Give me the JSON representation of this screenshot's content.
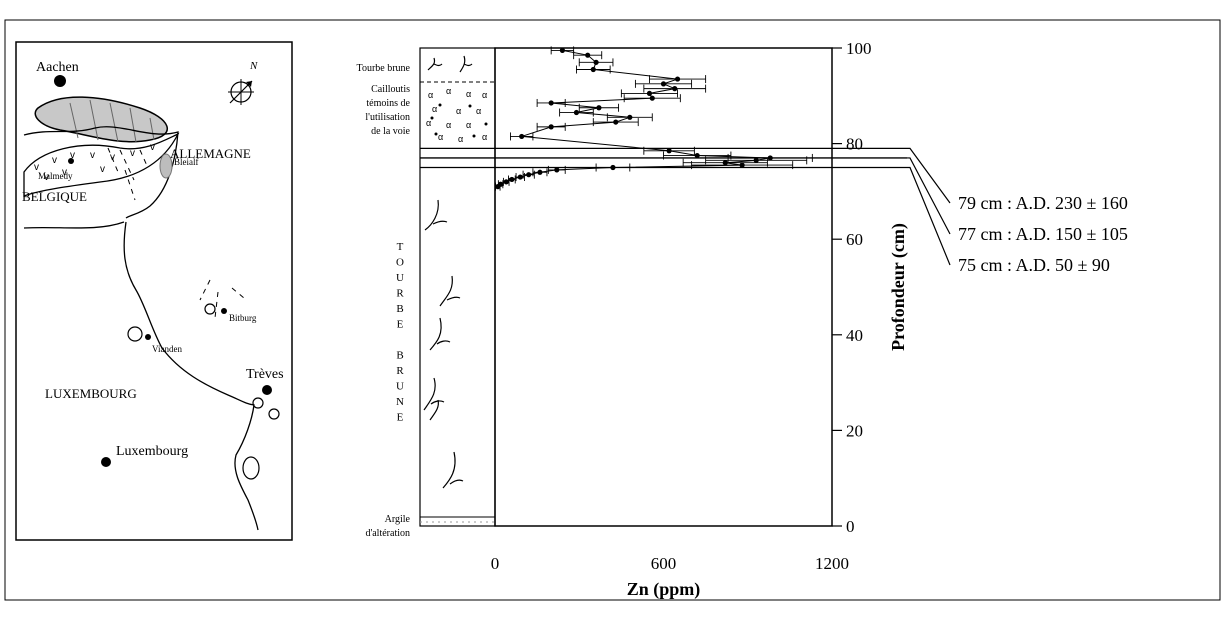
{
  "map": {
    "places": {
      "aachen": "Aachen",
      "malmedy": "Malmedy",
      "bleialf": "Bleialf",
      "bitburg": "Bitburg",
      "vianden": "Vianden",
      "treves": "Trèves",
      "luxembourg_city": "Luxembourg"
    },
    "countries": {
      "allemagne": "ALLEMAGNE",
      "belgique": "BELGIQUE",
      "luxembourg": "LUXEMBOURG"
    },
    "north": "N"
  },
  "column": {
    "labels": {
      "tourbe_brune_top": "Tourbe brune",
      "cailloutis": [
        "Cailloutis",
        "témoins de",
        "l'utilisation",
        "de la voie"
      ],
      "tourbe_vertical": [
        "T",
        "O",
        "U",
        "R",
        "B",
        "E",
        "",
        "B",
        "R",
        "U",
        "N",
        "E"
      ],
      "argile": [
        "Argile",
        "d'altération"
      ]
    }
  },
  "chart_data": {
    "type": "line",
    "xlabel": "Zn (ppm)",
    "ylabel": "Profondeur (cm)",
    "xlim": [
      0,
      1200
    ],
    "ylim": [
      0,
      100
    ],
    "xticks": [
      0,
      600,
      1200
    ],
    "yticks": [
      0,
      20,
      40,
      60,
      80,
      100
    ],
    "series": [
      {
        "points": [
          {
            "x": 240,
            "y": 99.5,
            "err": 40
          },
          {
            "x": 330,
            "y": 98.5,
            "err": 50
          },
          {
            "x": 360,
            "y": 97.0,
            "err": 60
          },
          {
            "x": 350,
            "y": 95.5,
            "err": 60
          },
          {
            "x": 650,
            "y": 93.5,
            "err": 100
          },
          {
            "x": 600,
            "y": 92.5,
            "err": 100
          },
          {
            "x": 640,
            "y": 91.5,
            "err": 110
          },
          {
            "x": 550,
            "y": 90.5,
            "err": 100
          },
          {
            "x": 560,
            "y": 89.5,
            "err": 100
          },
          {
            "x": 200,
            "y": 88.5,
            "err": 50
          },
          {
            "x": 370,
            "y": 87.5,
            "err": 70
          },
          {
            "x": 290,
            "y": 86.5,
            "err": 60
          },
          {
            "x": 480,
            "y": 85.5,
            "err": 80
          },
          {
            "x": 430,
            "y": 84.5,
            "err": 80
          },
          {
            "x": 200,
            "y": 83.5,
            "err": 50
          },
          {
            "x": 95,
            "y": 81.5,
            "err": 40
          },
          {
            "x": 620,
            "y": 78.5,
            "err": 90
          },
          {
            "x": 720,
            "y": 77.5,
            "err": 120
          },
          {
            "x": 980,
            "y": 77.0,
            "err": 150
          },
          {
            "x": 930,
            "y": 76.5,
            "err": 180
          },
          {
            "x": 820,
            "y": 76.0,
            "err": 150
          },
          {
            "x": 880,
            "y": 75.5,
            "err": 180
          },
          {
            "x": 420,
            "y": 75.0,
            "err": 60
          },
          {
            "x": 220,
            "y": 74.5,
            "err": 30
          },
          {
            "x": 160,
            "y": 74.0,
            "err": 25
          },
          {
            "x": 120,
            "y": 73.5,
            "err": 20
          },
          {
            "x": 90,
            "y": 73.0,
            "err": 15
          },
          {
            "x": 60,
            "y": 72.5,
            "err": 12
          },
          {
            "x": 40,
            "y": 72.0,
            "err": 10
          },
          {
            "x": 20,
            "y": 71.5,
            "err": 8
          },
          {
            "x": 10,
            "y": 71.0,
            "err": 8
          }
        ]
      }
    ],
    "annotations": [
      {
        "depth": 79,
        "label": "79 cm :  A.D. 230 ± 160"
      },
      {
        "depth": 77,
        "label": "77 cm :  A.D. 150 ± 105"
      },
      {
        "depth": 75,
        "label": "75 cm :  A.D. 50 ± 90"
      }
    ],
    "grid": false
  }
}
